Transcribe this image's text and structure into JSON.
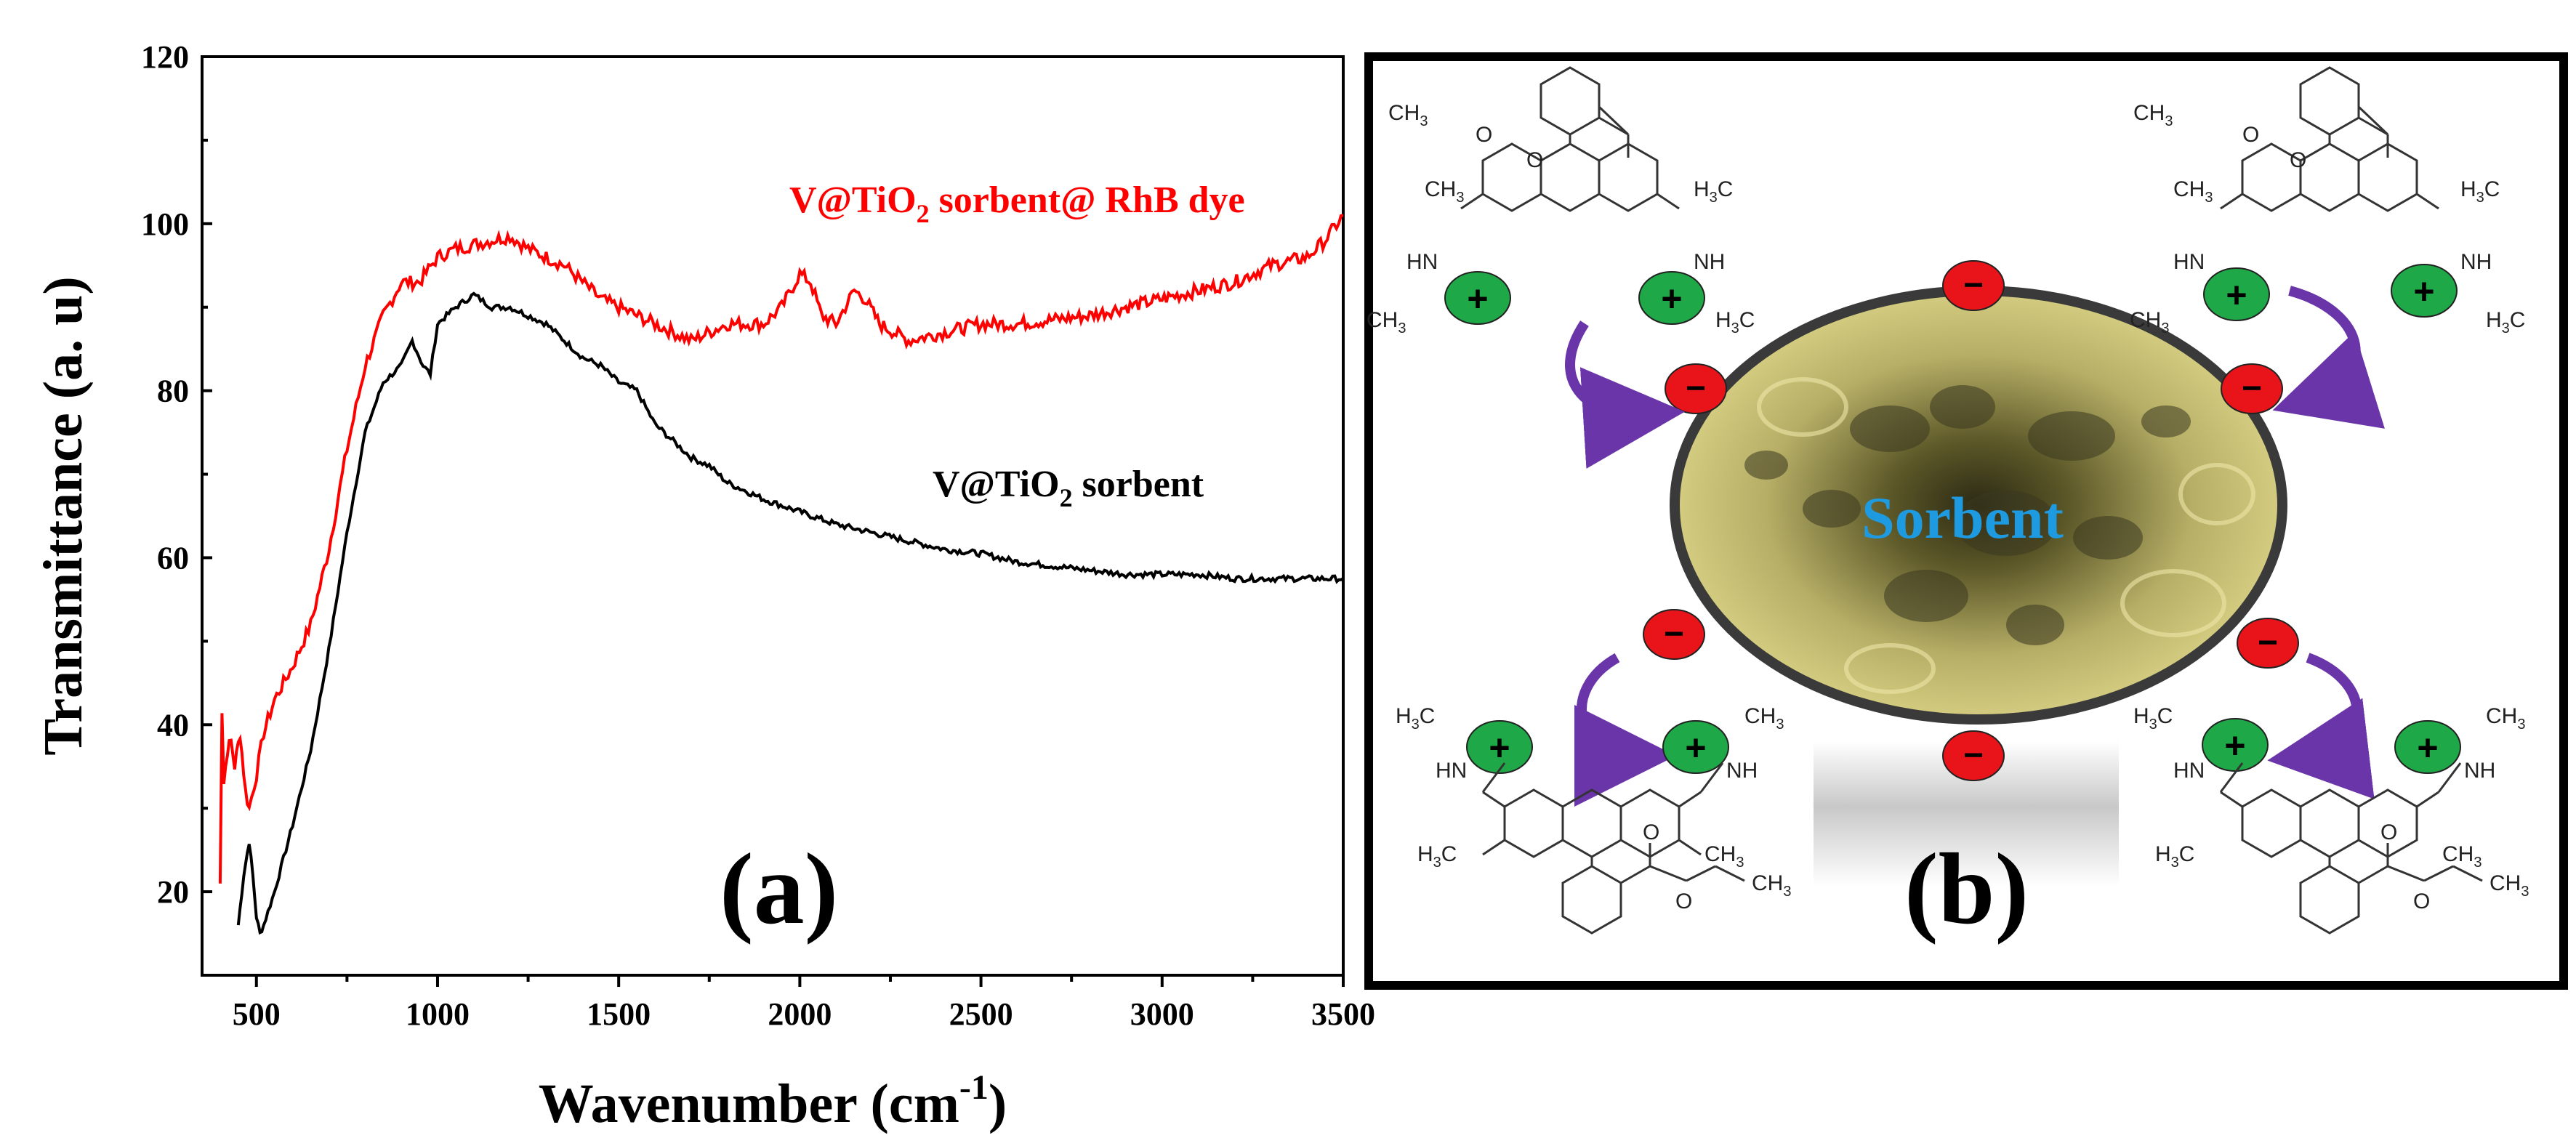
{
  "chart_data": {
    "type": "line",
    "title": "",
    "xlabel": "Wavenumber (cm",
    "xlabel_sup": "-1",
    "xlabel_close": ")",
    "ylabel": "Transmittance (a. u)",
    "xlim": [
      350,
      3500
    ],
    "ylim": [
      10,
      120
    ],
    "x_ticks": [
      500,
      1000,
      1500,
      2000,
      2500,
      3000,
      3500
    ],
    "x_tick_labels": [
      "500",
      "1000",
      "1500",
      "2000",
      "2500",
      "3000",
      "3500"
    ],
    "y_ticks": [
      20,
      40,
      60,
      80,
      100,
      120
    ],
    "y_tick_labels": [
      "20",
      "40",
      "60",
      "80",
      "100",
      "120"
    ],
    "panel_label": "(a)",
    "series": [
      {
        "name": "V@TiO2 sorbent@ RhB dye",
        "label_main": "V@TiO",
        "label_sub": "2",
        "label_rest": " sorbent@ RhB dye",
        "color": "#ff0000",
        "x": [
          400,
          405,
          410,
          420,
          430,
          440,
          455,
          470,
          480,
          500,
          520,
          550,
          600,
          650,
          700,
          750,
          800,
          850,
          900,
          950,
          1000,
          1050,
          1100,
          1150,
          1200,
          1250,
          1300,
          1350,
          1400,
          1450,
          1500,
          1550,
          1600,
          1650,
          1700,
          1750,
          1800,
          1850,
          1900,
          1950,
          2000,
          2030,
          2060,
          2100,
          2150,
          2180,
          2220,
          2260,
          2300,
          2350,
          2400,
          2500,
          2600,
          2700,
          2800,
          2900,
          3000,
          3100,
          3200,
          3300,
          3400,
          3450,
          3500
        ],
        "values": [
          21,
          42,
          33,
          37,
          38,
          35,
          39,
          32,
          30,
          34,
          39,
          43,
          47,
          52,
          61,
          73,
          83,
          89,
          93,
          93,
          96,
          97,
          97.5,
          98,
          98.5,
          97,
          96,
          95,
          93,
          91,
          90,
          89,
          88,
          87,
          86,
          87,
          88,
          88,
          88,
          90,
          94,
          93,
          89,
          88,
          92,
          91,
          88,
          87,
          86,
          86.5,
          87,
          88,
          88,
          88.5,
          89,
          90,
          91,
          92,
          93,
          95,
          96,
          98,
          101
        ]
      },
      {
        "name": "V@TiO2 sorbent",
        "label_main": "V@TiO",
        "label_sub": "2",
        "label_rest": " sorbent",
        "color": "#000000",
        "x": [
          450,
          465,
          480,
          490,
          500,
          510,
          520,
          550,
          600,
          650,
          700,
          750,
          800,
          850,
          900,
          930,
          960,
          980,
          1000,
          1050,
          1100,
          1150,
          1200,
          1250,
          1300,
          1350,
          1400,
          1450,
          1500,
          1550,
          1600,
          1650,
          1700,
          1750,
          1800,
          1900,
          2000,
          2100,
          2200,
          2300,
          2400,
          2500,
          2600,
          2700,
          2800,
          2900,
          3000,
          3100,
          3200,
          3300,
          3400,
          3500
        ],
        "values": [
          16,
          22,
          26,
          22,
          17,
          15,
          16,
          20,
          28,
          37,
          49,
          63,
          75,
          81,
          83,
          86,
          83,
          82,
          88,
          90,
          91.5,
          90,
          90,
          89,
          88,
          86,
          84,
          83,
          81,
          80,
          76,
          74,
          72,
          71,
          69,
          67,
          65.5,
          64,
          63,
          62,
          61,
          60.5,
          59.5,
          59,
          58.5,
          58,
          58,
          58,
          57.5,
          57.5,
          57.5,
          57.5
        ]
      }
    ]
  },
  "panel_b": {
    "panel_label": "(b)",
    "center_label": "Sorbent",
    "colors": {
      "positive": "#1fa847",
      "negative": "#e8141a",
      "arrow": "#6a35a8",
      "core": "#c9c175",
      "label": "#1e9be0"
    },
    "positive_sign": "+",
    "negative_sign": "−",
    "chem_labels": {
      "ch3": "CH",
      "three": "3",
      "h3c": "H",
      "h3c_sub": "3",
      "h3c_c": "C",
      "hn": "HN",
      "nh": "NH",
      "n": "N",
      "o": "O"
    }
  }
}
